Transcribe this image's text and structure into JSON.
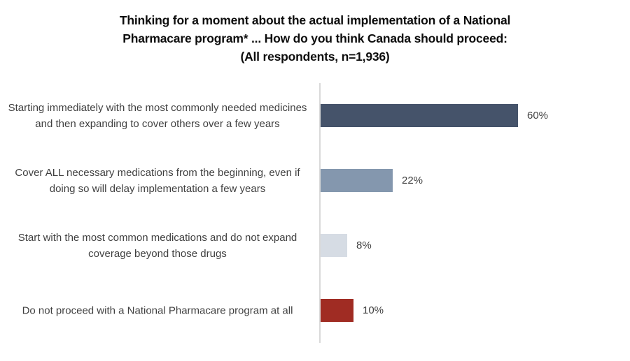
{
  "title": {
    "lines": [
      "Thinking for a moment about the actual implementation of a National",
      "Pharmacare program* ... How do you think Canada should proceed:",
      "(All respondents, n=1,936)"
    ]
  },
  "chart_data": {
    "type": "bar",
    "orientation": "horizontal",
    "title": "Thinking for a moment about the actual implementation of a National Pharmacare program* ... How do you think Canada should proceed: (All respondents, n=1,936)",
    "categories": [
      "Starting immediately with the most commonly needed medicines and then expanding to cover others over a few years",
      "Cover ALL necessary medications from the beginning, even if doing so will delay implementation a few years",
      "Start with the most common medications and do not expand coverage beyond those drugs",
      "Do not proceed with a National Pharmacare program at all"
    ],
    "values": [
      60,
      22,
      8,
      10
    ],
    "value_labels": [
      "60%",
      "22%",
      "8%",
      "10%"
    ],
    "colors": [
      "#45536a",
      "#8497ae",
      "#d6dce4",
      "#a02c23"
    ],
    "xlim": [
      0,
      100
    ],
    "xlabel": "",
    "ylabel": "",
    "grid": false,
    "legend": "none",
    "axis_line_color": "#d9d9d9",
    "label_text_color": "#3f3f3f",
    "title_text_color": "#0d0d0d"
  }
}
